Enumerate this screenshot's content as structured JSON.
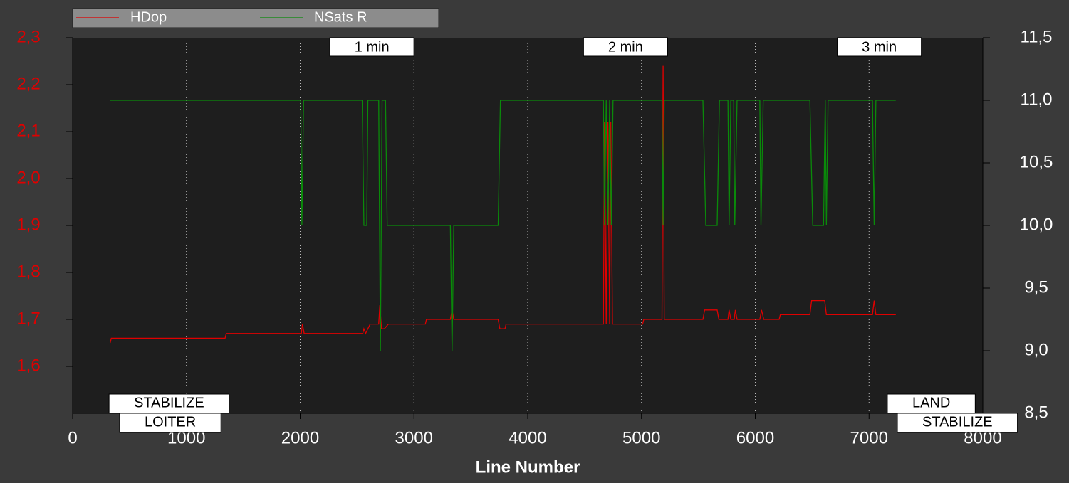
{
  "chart_data": {
    "type": "line",
    "xlabel": "Line Number",
    "xlim": [
      0,
      8000
    ],
    "xticks": [
      0,
      1000,
      2000,
      3000,
      4000,
      5000,
      6000,
      7000,
      8000
    ],
    "ylim": [
      1.5,
      2.3
    ],
    "yticks": [
      {
        "value": 1.6,
        "label": "1,6"
      },
      {
        "value": 1.7,
        "label": "1,7"
      },
      {
        "value": 1.8,
        "label": "1,8"
      },
      {
        "value": 1.9,
        "label": "1,9"
      },
      {
        "value": 2.0,
        "label": "2,0"
      },
      {
        "value": 2.1,
        "label": "2,1"
      },
      {
        "value": 2.2,
        "label": "2,2"
      },
      {
        "value": 2.3,
        "label": "2,3"
      }
    ],
    "y2lim": [
      8.5,
      11.5
    ],
    "y2ticks": [
      {
        "value": 8.5,
        "label": "8,5"
      },
      {
        "value": 9.0,
        "label": "9,0"
      },
      {
        "value": 9.5,
        "label": "9,5"
      },
      {
        "value": 10.0,
        "label": "10,0"
      },
      {
        "value": 10.5,
        "label": "10,5"
      },
      {
        "value": 11.0,
        "label": "11,0"
      },
      {
        "value": 11.5,
        "label": "11,5"
      }
    ],
    "grid": true,
    "legend": "top",
    "series": [
      {
        "name": "HDop",
        "color": "#e00000",
        "x": [
          330,
          340,
          1340,
          1350,
          2010,
          2020,
          2035,
          2550,
          2560,
          2575,
          2615,
          2690,
          2700,
          2715,
          2740,
          2775,
          3100,
          3110,
          3320,
          3335,
          3350,
          3740,
          3755,
          3800,
          3810,
          4665,
          4675,
          4690,
          4705,
          4720,
          4730,
          4745,
          5010,
          5020,
          5180,
          5190,
          5200,
          5540,
          5555,
          5665,
          5680,
          5760,
          5770,
          5785,
          5815,
          5825,
          5840,
          6040,
          6055,
          6075,
          6210,
          6220,
          6480,
          6495,
          6610,
          6625,
          7030,
          7045,
          7060,
          7235
        ],
        "values": [
          1.65,
          1.66,
          1.66,
          1.67,
          1.67,
          1.69,
          1.67,
          1.67,
          1.68,
          1.67,
          1.69,
          1.69,
          1.73,
          1.68,
          1.68,
          1.69,
          1.69,
          1.7,
          1.7,
          1.72,
          1.7,
          1.7,
          1.68,
          1.68,
          1.69,
          1.69,
          2.12,
          1.69,
          2.12,
          1.69,
          2.12,
          1.69,
          1.69,
          1.7,
          1.7,
          2.24,
          1.7,
          1.7,
          1.72,
          1.72,
          1.7,
          1.7,
          1.72,
          1.7,
          1.7,
          1.72,
          1.7,
          1.7,
          1.72,
          1.7,
          1.7,
          1.71,
          1.71,
          1.74,
          1.74,
          1.71,
          1.71,
          1.74,
          1.71,
          1.71
        ]
      },
      {
        "name": "NSats R",
        "color": "#0a8a0a",
        "axis": "y2",
        "x": [
          330,
          2005,
          2015,
          2030,
          2545,
          2560,
          2585,
          2595,
          2690,
          2705,
          2720,
          2750,
          2765,
          3320,
          3335,
          3350,
          3740,
          3760,
          4665,
          4675,
          4690,
          4705,
          4720,
          4735,
          4750,
          5180,
          5190,
          5200,
          5540,
          5565,
          5665,
          5685,
          5760,
          5770,
          5785,
          5810,
          5820,
          5840,
          6040,
          6050,
          6070,
          6480,
          6505,
          6600,
          6615,
          6625,
          6640,
          7030,
          7045,
          7060,
          7235
        ],
        "values": [
          11,
          11,
          10,
          11,
          11,
          10,
          10,
          11,
          11,
          9,
          11,
          11,
          10,
          10,
          9,
          10,
          10,
          11,
          11,
          10,
          11,
          10,
          11,
          10,
          11,
          11,
          10,
          11,
          11,
          10,
          10,
          11,
          11,
          10,
          11,
          11,
          10,
          11,
          11,
          10,
          11,
          11,
          10,
          10,
          11,
          10,
          11,
          11,
          10,
          11,
          11
        ]
      }
    ],
    "annotations": [
      {
        "label": "1 min",
        "x": 2630
      },
      {
        "label": "2 min",
        "x": 4860
      },
      {
        "label": "3 min",
        "x": 7090
      }
    ],
    "modes": [
      {
        "label": "STABILIZE",
        "x": 320
      },
      {
        "label": "LOITER",
        "x": 413
      },
      {
        "label": "LAND",
        "x": 7161
      },
      {
        "label": "STABILIZE",
        "x": 7249
      }
    ]
  }
}
